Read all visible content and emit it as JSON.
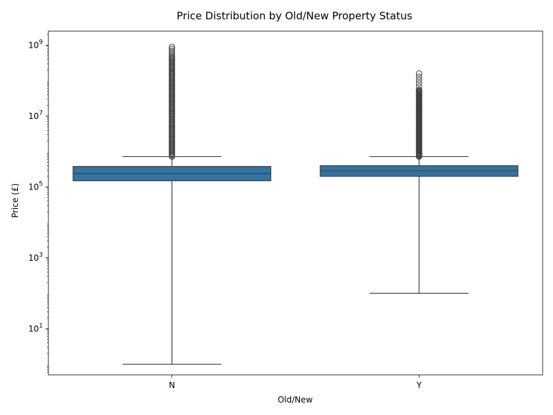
{
  "chart_data": {
    "type": "box",
    "title": "Price Distribution by Old/New Property Status",
    "xlabel": "Old/New",
    "ylabel": "Price (£)",
    "yscale": "log",
    "ylim": [
      0.5,
      2500000000
    ],
    "categories": [
      "N",
      "Y"
    ],
    "y_ticks": [
      {
        "value": 10,
        "base": "10",
        "exp": "1"
      },
      {
        "value": 1000,
        "base": "10",
        "exp": "3"
      },
      {
        "value": 100000,
        "base": "10",
        "exp": "5"
      },
      {
        "value": 10000000,
        "base": "10",
        "exp": "7"
      },
      {
        "value": 1000000000,
        "base": "10",
        "exp": "9"
      }
    ],
    "boxes": [
      {
        "category": "N",
        "whisker_low": 1,
        "q1": 150000,
        "median": 240000,
        "q3": 380000,
        "whisker_high": 720000,
        "outlier_min": 720000,
        "outlier_max": 480000000,
        "outlier_top": 900000000
      },
      {
        "category": "Y",
        "whisker_low": 100,
        "q1": 200000,
        "median": 285000,
        "q3": 400000,
        "whisker_high": 720000,
        "outlier_min": 720000,
        "outlier_max": 55000000,
        "outlier_top": 160000000
      }
    ],
    "grid": false,
    "legend": "none",
    "colors": {
      "box_fill": "#3274a1",
      "line": "#3f3f3f"
    }
  }
}
